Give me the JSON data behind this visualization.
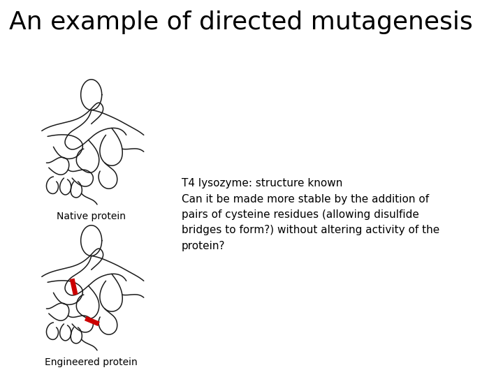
{
  "title": "An example of directed mutagenesis",
  "title_fontsize": 26,
  "title_fontweight": "normal",
  "subtitle": "T4 lysozyme: structure known",
  "subtitle_fontsize": 11,
  "body_text": "Can it be made more stable by the addition of\npairs of cysteine residues (allowing disulfide\nbridges to form?) without altering activity of the\nprotein?",
  "body_fontsize": 11,
  "label_native": "Native protein",
  "label_engineered": "Engineered protein",
  "label_fontsize": 10,
  "bg_color": "#ffffff",
  "text_color": "#000000",
  "line_color": "#1a1a1a",
  "red_color": "#cc0000"
}
